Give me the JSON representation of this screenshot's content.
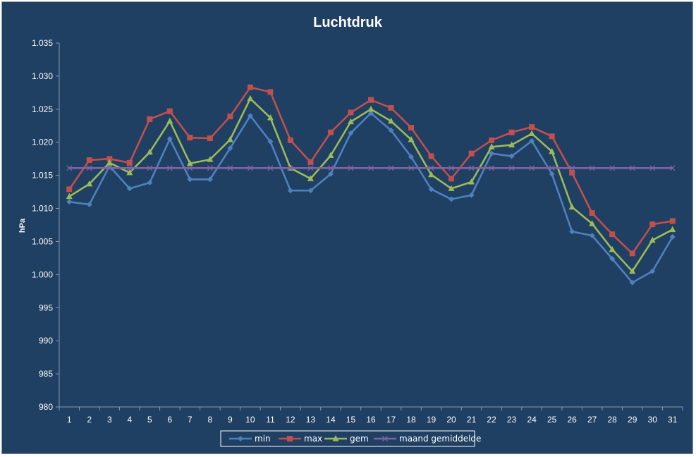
{
  "chart_data": {
    "type": "line",
    "title": "Luchtdruk",
    "xlabel": "",
    "ylabel": "hPa",
    "ylim": [
      980,
      1035
    ],
    "y_ticks": [
      "980",
      "985",
      "990",
      "995",
      "1.000",
      "1.005",
      "1.010",
      "1.015",
      "1.020",
      "1.025",
      "1.030",
      "1.035"
    ],
    "categories": [
      "1",
      "2",
      "3",
      "4",
      "5",
      "6",
      "7",
      "8",
      "9",
      "10",
      "11",
      "12",
      "13",
      "14",
      "15",
      "16",
      "17",
      "18",
      "19",
      "20",
      "21",
      "22",
      "23",
      "24",
      "25",
      "26",
      "27",
      "28",
      "29",
      "30",
      "31"
    ],
    "grid": false,
    "legend": "bottom",
    "series": [
      {
        "name": "min",
        "color": "#4f81bd",
        "marker": "diamond",
        "values": [
          1011.0,
          1010.6,
          1016.4,
          1013.0,
          1013.9,
          1020.5,
          1014.4,
          1014.4,
          1019.1,
          1024.0,
          1020.1,
          1012.7,
          1012.7,
          1015.2,
          1021.4,
          1024.4,
          1021.8,
          1017.8,
          1012.9,
          1011.4,
          1012.0,
          1018.3,
          1017.9,
          1020.2,
          1015.2,
          1006.5,
          1005.9,
          1002.4,
          998.8,
          1000.5,
          1005.7
        ]
      },
      {
        "name": "max",
        "color": "#c0504d",
        "marker": "square",
        "values": [
          1012.9,
          1017.3,
          1017.5,
          1016.9,
          1023.5,
          1024.7,
          1020.7,
          1020.6,
          1023.9,
          1028.3,
          1027.6,
          1020.3,
          1017.0,
          1021.5,
          1024.5,
          1026.4,
          1025.2,
          1022.2,
          1017.9,
          1014.5,
          1018.3,
          1020.3,
          1021.5,
          1022.3,
          1020.9,
          1015.4,
          1009.3,
          1006.1,
          1003.2,
          1007.6,
          1008.1
        ]
      },
      {
        "name": "gem",
        "color": "#9bbb59",
        "marker": "triangle",
        "values": [
          1011.8,
          1013.7,
          1016.9,
          1015.4,
          1018.5,
          1023.2,
          1016.8,
          1017.4,
          1020.4,
          1026.6,
          1023.7,
          1016.1,
          1014.5,
          1018.0,
          1023.1,
          1025.0,
          1023.2,
          1020.4,
          1015.1,
          1013.0,
          1014.0,
          1019.3,
          1019.6,
          1021.3,
          1018.6,
          1010.2,
          1007.7,
          1003.8,
          1000.5,
          1005.2,
          1006.8
        ]
      },
      {
        "name": "maand gemiddelde",
        "color": "#8064a2",
        "marker": "x",
        "values": [
          1016.1,
          1016.1,
          1016.1,
          1016.1,
          1016.1,
          1016.1,
          1016.1,
          1016.1,
          1016.1,
          1016.1,
          1016.1,
          1016.1,
          1016.1,
          1016.1,
          1016.1,
          1016.1,
          1016.1,
          1016.1,
          1016.1,
          1016.1,
          1016.1,
          1016.1,
          1016.1,
          1016.1,
          1016.1,
          1016.1,
          1016.1,
          1016.1,
          1016.1,
          1016.1,
          1016.1
        ]
      }
    ]
  }
}
